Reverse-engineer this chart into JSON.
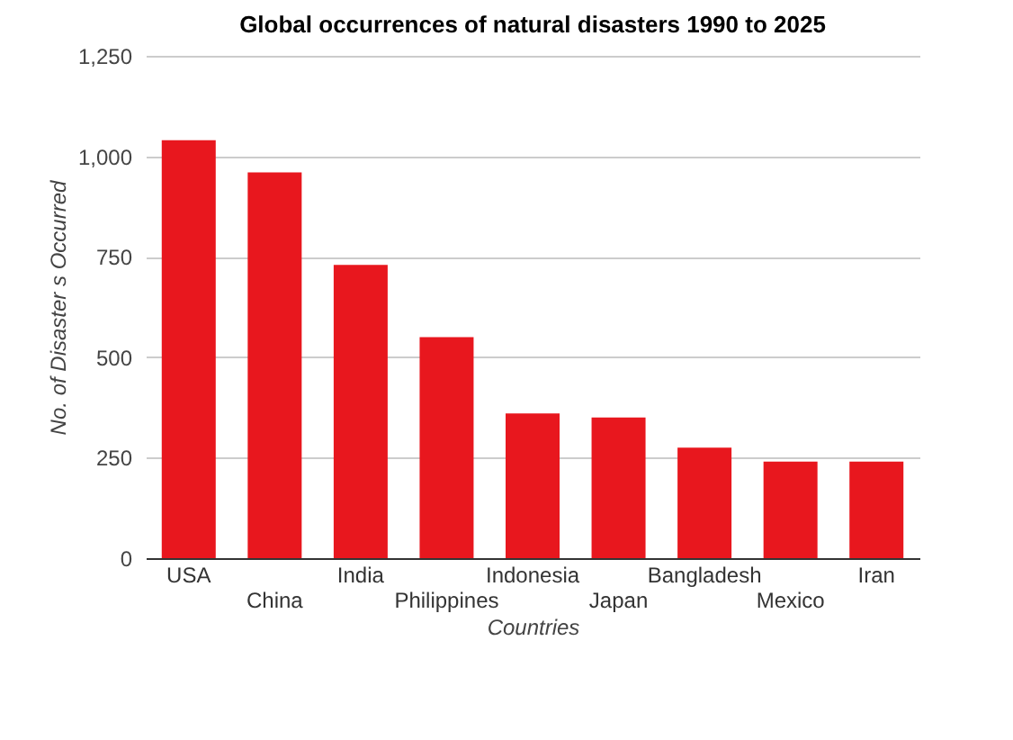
{
  "chart_data": {
    "type": "bar",
    "title": "Global occurrences of natural disasters 1990 to 2025",
    "xlabel": "Countries",
    "ylabel": "No. of Disaster s Occurred",
    "categories": [
      "USA",
      "China",
      "India",
      "Philippines",
      "Indonesia",
      "Japan",
      "Bangladesh",
      "Mexico",
      "Iran"
    ],
    "values": [
      1040,
      960,
      730,
      550,
      360,
      350,
      275,
      240,
      240
    ],
    "color": "#e8171e",
    "ylim": [
      0,
      1250
    ],
    "yticks": [
      0,
      250,
      500,
      750,
      {
        "value": 1000,
        "label": "1,000"
      },
      {
        "value": 1250,
        "label": "1,250"
      }
    ],
    "grid": "y"
  }
}
